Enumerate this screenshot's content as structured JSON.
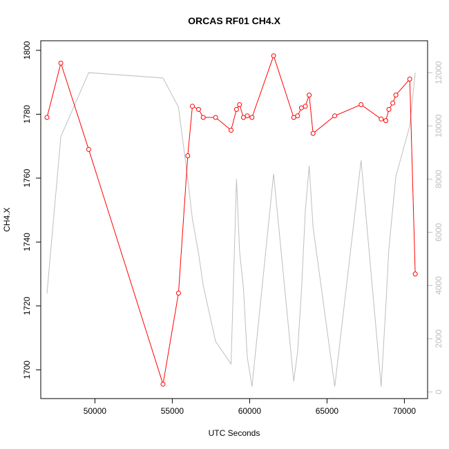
{
  "chart_data": {
    "type": "line",
    "title": "ORCAS RF01 CH4.X",
    "xlabel": "UTC Seconds",
    "ylabel": "CH4.X",
    "xlim": [
      46500,
      71500
    ],
    "ylim": [
      1691,
      1803
    ],
    "y2lim": [
      -250,
      13200
    ],
    "x_ticks": [
      50000,
      55000,
      60000,
      65000,
      70000
    ],
    "y_ticks": [
      1700,
      1720,
      1740,
      1760,
      1780,
      1800
    ],
    "y2_ticks": [
      0,
      2000,
      4000,
      6000,
      8000,
      10000,
      12000
    ],
    "series": [
      {
        "axis": "left",
        "color": "#ff0000",
        "marker": "open-circle",
        "x": [
          46900,
          47800,
          49600,
          54400,
          55400,
          56000,
          56300,
          56700,
          57000,
          57800,
          58800,
          59150,
          59350,
          59600,
          59850,
          60150,
          61550,
          62850,
          63100,
          63350,
          63600,
          63850,
          64100,
          65500,
          67200,
          68500,
          68800,
          69000,
          69250,
          69450,
          70350,
          70700
        ],
        "y": [
          1779,
          1796,
          1769,
          1695.5,
          1724,
          1767,
          1782.5,
          1781.5,
          1779,
          1779,
          1775,
          1781.5,
          1783,
          1779,
          1779.5,
          1779,
          1798.3,
          1779,
          1779.5,
          1782,
          1782.5,
          1786,
          1774,
          1779.5,
          1783,
          1778.5,
          1778,
          1781.5,
          1783.5,
          1786,
          1791,
          1730
        ]
      },
      {
        "axis": "right",
        "color": "#bebebe",
        "marker": "none",
        "x": [
          46900,
          47800,
          49600,
          54400,
          55400,
          56000,
          56300,
          56700,
          57000,
          57800,
          58800,
          59150,
          59350,
          59600,
          59850,
          60150,
          61550,
          62850,
          63100,
          63350,
          63600,
          63850,
          64100,
          65500,
          67200,
          68500,
          68800,
          69000,
          69250,
          69450,
          70350,
          70700
        ],
        "y": [
          3700,
          9600,
          12000,
          11800,
          10700,
          8000,
          6500,
          5200,
          4000,
          1900,
          1050,
          8000,
          5300,
          3900,
          1300,
          200,
          8200,
          400,
          1500,
          3800,
          6800,
          8500,
          6200,
          200,
          8700,
          200,
          3200,
          5400,
          6900,
          8100,
          10000,
          12000
        ]
      }
    ]
  }
}
